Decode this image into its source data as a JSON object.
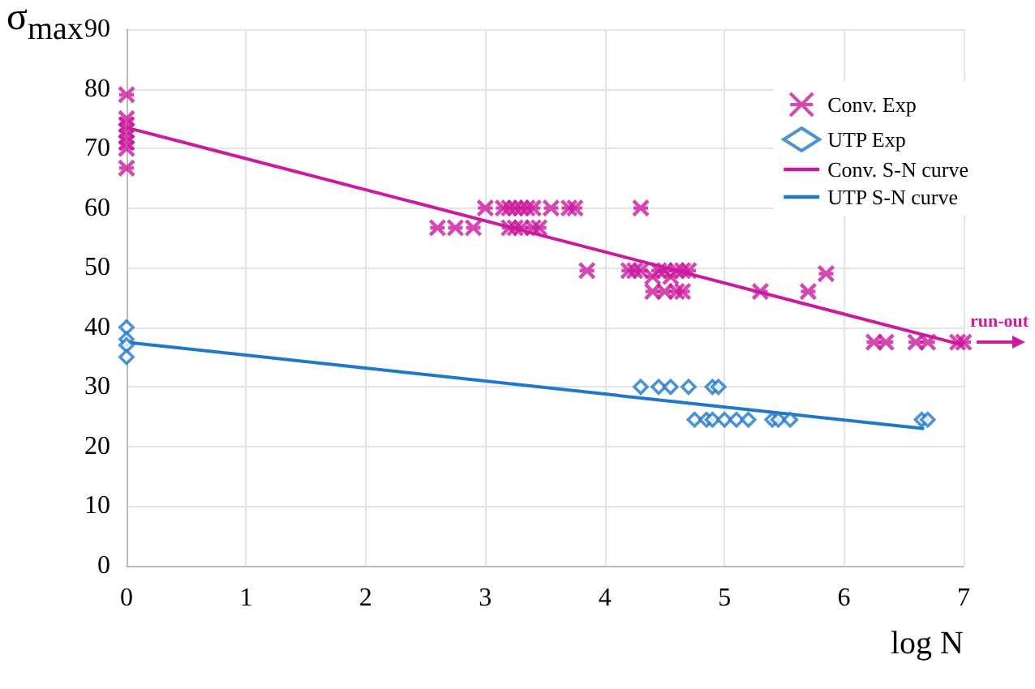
{
  "chart_data": {
    "type": "scatter",
    "xlabel": "log N",
    "ylabel": "σ$_{max}$",
    "xlim": [
      0,
      7
    ],
    "xticks": [
      0,
      1,
      2,
      3,
      4,
      5,
      6,
      7
    ],
    "ylim": [
      0,
      90
    ],
    "yticks": [
      0,
      10,
      20,
      30,
      40,
      50,
      60,
      70,
      80,
      90
    ],
    "grid": true,
    "legend": "top right",
    "series": [
      {
        "name": "Conv. Exp",
        "type": "scatter",
        "marker": "cross",
        "color": "#cc1a9e",
        "x": [
          0,
          0,
          0,
          0,
          0,
          0,
          0,
          0,
          3.0,
          3.15,
          3.2,
          3.25,
          3.3,
          3.35,
          3.4,
          3.55,
          3.7,
          3.75,
          4.3,
          2.6,
          2.75,
          2.9,
          3.2,
          3.25,
          3.3,
          3.4,
          3.45,
          3.85,
          4.2,
          4.25,
          4.3,
          4.45,
          4.5,
          4.6,
          4.65,
          4.7,
          4.4,
          4.55,
          4.4,
          4.5,
          4.6,
          4.65,
          5.3,
          5.7,
          5.85,
          6.25,
          6.35,
          6.6,
          6.7,
          6.95,
          7.0
        ],
        "values": [
          79,
          75,
          74,
          73,
          72,
          71,
          70,
          66.7,
          60,
          60,
          60,
          60,
          60,
          60,
          60,
          60,
          60,
          60,
          60,
          56.7,
          56.7,
          56.7,
          56.7,
          56.7,
          56.7,
          56.7,
          56.7,
          49.5,
          49.5,
          49.5,
          49.5,
          49.5,
          49.5,
          49.5,
          49.5,
          49.5,
          48.5,
          48.5,
          46,
          46,
          46,
          46,
          46,
          46,
          49,
          37.5,
          37.5,
          37.5,
          37.5,
          37.5,
          37.5
        ]
      },
      {
        "name": "UTP Exp",
        "type": "scatter",
        "marker": "diamond",
        "color": "#1f78c8",
        "x": [
          0,
          0,
          0,
          0,
          4.3,
          4.45,
          4.55,
          4.7,
          4.9,
          4.95,
          4.75,
          4.85,
          4.9,
          5.0,
          5.1,
          5.2,
          5.4,
          5.45,
          5.55,
          6.65,
          6.7
        ],
        "values": [
          40,
          38,
          37,
          35,
          30,
          30,
          30,
          30,
          30,
          30,
          24.5,
          24.5,
          24.5,
          24.5,
          24.5,
          24.5,
          24.5,
          24.5,
          24.5,
          24.5,
          24.5
        ]
      },
      {
        "name": "Conv. S-N curve",
        "type": "line",
        "marker": "none",
        "color": "#cc1a9e",
        "x": [
          0,
          7
        ],
        "values": [
          73.5,
          37
        ]
      },
      {
        "name": "UTP S-N curve",
        "type": "line",
        "marker": "none",
        "color": "#1f78c8",
        "x": [
          0,
          6.67
        ],
        "values": [
          37.5,
          23
        ]
      }
    ],
    "annotations": [
      {
        "text": "run-out",
        "x": 7,
        "y": 37.5
      }
    ]
  }
}
